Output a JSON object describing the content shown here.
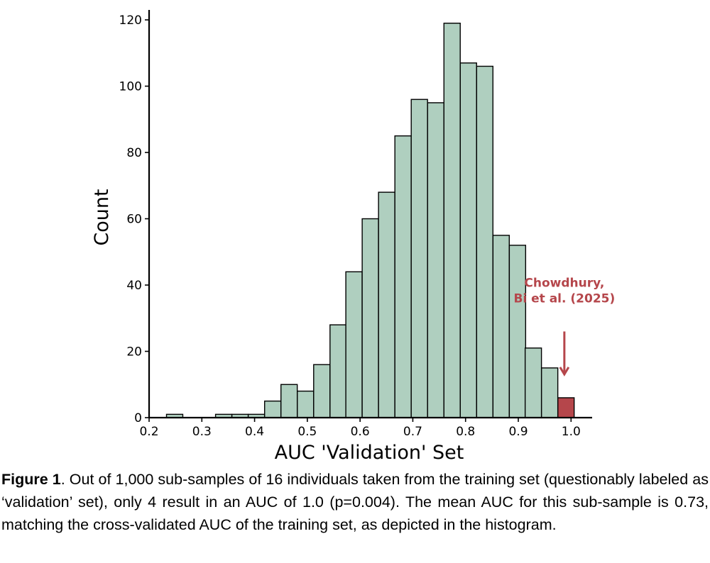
{
  "chart_data": {
    "type": "bar",
    "subtype": "histogram",
    "xlabel": "AUC 'Validation' Set",
    "ylabel": "Count",
    "xlim": [
      0.2,
      1.04
    ],
    "ylim": [
      0,
      123
    ],
    "xticks": [
      "0.2",
      "0.3",
      "0.4",
      "0.5",
      "0.6",
      "0.7",
      "0.8",
      "0.9",
      "1.0"
    ],
    "yticks": [
      "0",
      "20",
      "40",
      "60",
      "80",
      "100",
      "120"
    ],
    "bin_width": 0.0309,
    "bin_starts": [
      0.233,
      0.264,
      0.295,
      0.326,
      0.357,
      0.388,
      0.419,
      0.45,
      0.481,
      0.512,
      0.543,
      0.573,
      0.604,
      0.635,
      0.666,
      0.697,
      0.728,
      0.759,
      0.79,
      0.821,
      0.852,
      0.883,
      0.913,
      0.944,
      0.975
    ],
    "counts": [
      1,
      0,
      0,
      1,
      1,
      1,
      5,
      10,
      8,
      16,
      28,
      44,
      60,
      68,
      85,
      96,
      95,
      119,
      107,
      106,
      55,
      52,
      21,
      15,
      6
    ],
    "bar_color": "#afcfbf",
    "highlight_color": "#b5464b",
    "highlight_bin_index": 24,
    "annotation": {
      "lines": [
        "Chowdhury,",
        "Bi et al. (2025)"
      ],
      "color": "#b5464b",
      "arrow_x": 0.99,
      "arrow_from_y": 26,
      "arrow_to_y": 12,
      "text_x": 0.99,
      "text_y": 36
    },
    "grid": false,
    "legend": "none"
  },
  "caption": {
    "label": "Figure 1",
    "text": ". Out of 1,000 sub-samples of 16 individuals taken from the training set (questionably  labeled as ‘validation’ set), only 4 result in an AUC of 1.0 (p=0.004). The mean AUC for this sub-sample is 0.73, matching the cross-validated AUC of the training set, as depicted in the histogram."
  }
}
